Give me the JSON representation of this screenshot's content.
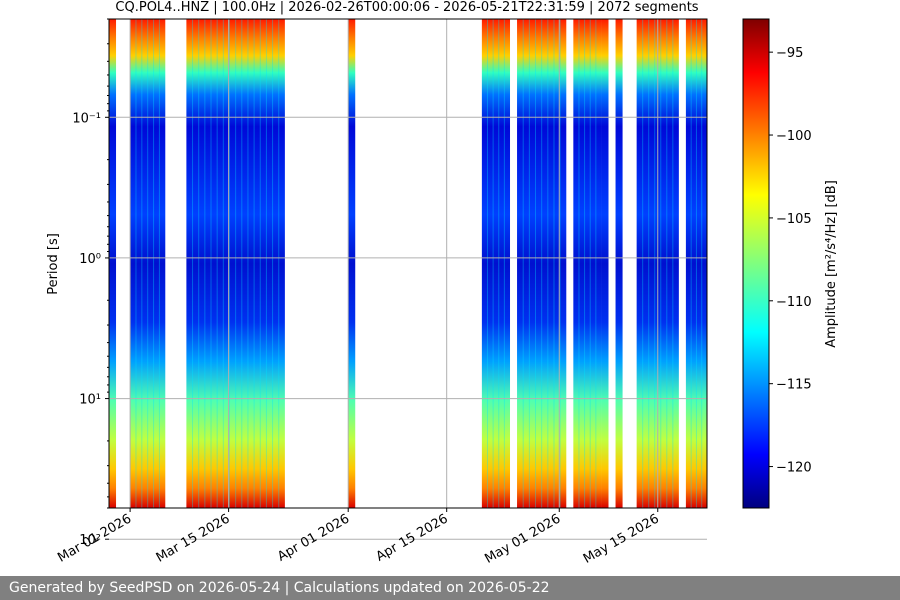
{
  "chart_data": {
    "type": "heatmap",
    "title": "CQ.POL4..HNZ | 100.0Hz | 2026-02-26T00:00:06 - 2026-05-21T22:31:59 | 2072 segments",
    "ylabel": "Period [s]",
    "colorbar_label": "Amplitude [m²/s⁴/Hz] [dB]",
    "x_start": "2026-02-26",
    "x_end": "2026-05-22",
    "x_ticks": [
      "Mar 01 2026",
      "Mar 15 2026",
      "Apr 01 2026",
      "Apr 15 2026",
      "May 01 2026",
      "May 15 2026"
    ],
    "x_tick_dates": [
      "2026-03-01",
      "2026-03-15",
      "2026-04-01",
      "2026-04-15",
      "2026-05-01",
      "2026-05-15"
    ],
    "y_scale": "log",
    "y_axis_inverted": true,
    "ylim": [
      0.02,
      60
    ],
    "y_ticks": [
      "10⁻¹",
      "10⁰",
      "10¹",
      "10²"
    ],
    "y_tick_values": [
      0.1,
      1,
      10,
      100
    ],
    "colorbar_range": [
      -122.5,
      -93
    ],
    "colorbar_ticks": [
      -95,
      -100,
      -105,
      -110,
      -115,
      -120
    ],
    "colormap": "jet",
    "grid": true,
    "data_intervals": [
      [
        "2026-02-26",
        "2026-02-27"
      ],
      [
        "2026-03-01",
        "2026-03-06"
      ],
      [
        "2026-03-09",
        "2026-03-23"
      ],
      [
        "2026-04-01",
        "2026-04-02"
      ],
      [
        "2026-04-20",
        "2026-04-24"
      ],
      [
        "2026-04-25",
        "2026-05-02"
      ],
      [
        "2026-05-03",
        "2026-05-07"
      ],
      [
        "2026-05-07",
        "2026-05-08"
      ],
      [
        "2026-05-09",
        "2026-05-10"
      ],
      [
        "2026-05-12",
        "2026-05-18"
      ],
      [
        "2026-05-19",
        "2026-05-22"
      ]
    ]
  },
  "footer": "Generated by SeedPSD on 2026-05-24 | Calculations updated on 2026-05-22"
}
